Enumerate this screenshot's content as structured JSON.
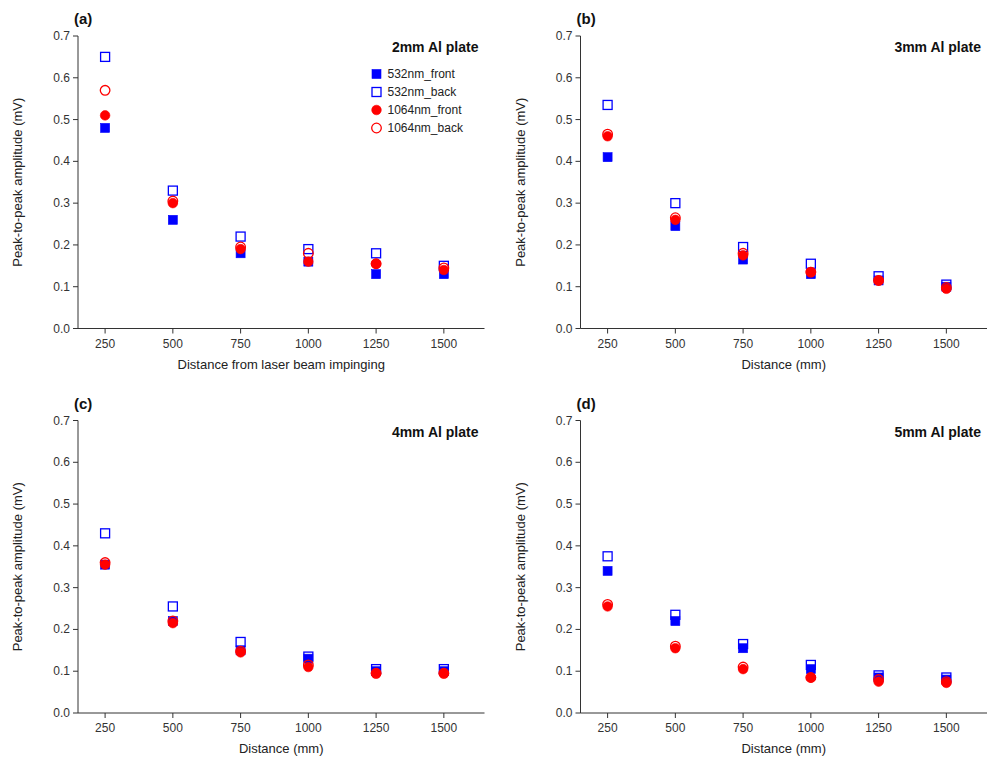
{
  "chart_data": [
    {
      "type": "scatter",
      "title": "2mm Al plate",
      "annotations": [
        "(a)"
      ],
      "x_label": "Distance from laser beam impinging",
      "y_label": "Peak-to-peak amplitude (mV)",
      "x": [
        250,
        500,
        750,
        1000,
        1250,
        1500
      ],
      "xlim": [
        150,
        1650
      ],
      "xticks": [
        250,
        500,
        750,
        1000,
        1250,
        1500
      ],
      "ylim": [
        0.0,
        0.7
      ],
      "yticks": [
        {
          "value": 0.0,
          "label": "0.0"
        },
        0.1,
        0.2,
        0.3,
        0.4,
        0.5,
        0.6,
        0.7
      ],
      "grid": false,
      "legend": "upper-right",
      "series": [
        {
          "name": "532nm_front",
          "color": "#0000FF",
          "marker": "square",
          "values": [
            0.48,
            0.26,
            0.18,
            0.16,
            0.13,
            0.13
          ]
        },
        {
          "name": "532nm_back",
          "color": "#0000FF",
          "marker": "open-square",
          "values": [
            0.65,
            0.33,
            0.22,
            0.19,
            0.18,
            0.15
          ]
        },
        {
          "name": "1064nm_front",
          "color": "#FF0000",
          "marker": "circle",
          "values": [
            0.51,
            0.3,
            0.19,
            0.16,
            0.155,
            0.14
          ]
        },
        {
          "name": "1064nm_back",
          "color": "#FF0000",
          "marker": "open-circle",
          "values": [
            0.57,
            0.305,
            0.195,
            0.18,
            0.155,
            0.145
          ]
        }
      ]
    },
    {
      "type": "scatter",
      "title": "3mm Al plate",
      "annotations": [
        "(b)"
      ],
      "x_label": "Distance (mm)",
      "y_label": "Peak-to-peak amplitude (mV)",
      "x": [
        250,
        500,
        750,
        1000,
        1250,
        1500
      ],
      "xlim": [
        150,
        1650
      ],
      "xticks": [
        250,
        500,
        750,
        1000,
        1250,
        1500
      ],
      "ylim": [
        0.0,
        0.7
      ],
      "yticks": [
        {
          "value": 0.0,
          "label": "0.0"
        },
        0.1,
        0.2,
        0.3,
        0.4,
        0.5,
        0.6,
        0.7
      ],
      "grid": false,
      "series": [
        {
          "name": "532nm_front",
          "color": "#0000FF",
          "marker": "square",
          "values": [
            0.41,
            0.245,
            0.165,
            0.13,
            0.115,
            0.1
          ]
        },
        {
          "name": "532nm_back",
          "color": "#0000FF",
          "marker": "open-square",
          "values": [
            0.535,
            0.3,
            0.195,
            0.155,
            0.125,
            0.105
          ]
        },
        {
          "name": "1064nm_front",
          "color": "#FF0000",
          "marker": "circle",
          "values": [
            0.46,
            0.26,
            0.175,
            0.135,
            0.115,
            0.095
          ]
        },
        {
          "name": "1064nm_back",
          "color": "#FF0000",
          "marker": "open-circle",
          "values": [
            0.465,
            0.265,
            0.18,
            0.135,
            0.115,
            0.098
          ]
        }
      ]
    },
    {
      "type": "scatter",
      "title": "4mm Al plate",
      "annotations": [
        "(c)"
      ],
      "x_label": "Distance (mm)",
      "y_label": "Peak-to-peak amplitude (mV)",
      "x": [
        250,
        500,
        750,
        1000,
        1250,
        1500
      ],
      "xlim": [
        150,
        1650
      ],
      "xticks": [
        250,
        500,
        750,
        1000,
        1250,
        1500
      ],
      "ylim": [
        0.0,
        0.7
      ],
      "yticks": [
        {
          "value": 0.0,
          "label": "0.0"
        },
        0.1,
        0.2,
        0.3,
        0.4,
        0.5,
        0.6,
        0.7
      ],
      "grid": false,
      "series": [
        {
          "name": "532nm_front",
          "color": "#0000FF",
          "marker": "square",
          "values": [
            0.355,
            0.22,
            0.15,
            0.13,
            0.1,
            0.1
          ]
        },
        {
          "name": "532nm_back",
          "color": "#0000FF",
          "marker": "open-square",
          "values": [
            0.43,
            0.255,
            0.17,
            0.135,
            0.105,
            0.105
          ]
        },
        {
          "name": "1064nm_front",
          "color": "#FF0000",
          "marker": "circle",
          "values": [
            0.355,
            0.215,
            0.145,
            0.11,
            0.095,
            0.095
          ]
        },
        {
          "name": "1064nm_back",
          "color": "#FF0000",
          "marker": "open-circle",
          "values": [
            0.36,
            0.22,
            0.148,
            0.115,
            0.095,
            0.095
          ]
        }
      ]
    },
    {
      "type": "scatter",
      "title": "5mm Al plate",
      "annotations": [
        "(d)"
      ],
      "x_label": "Distance (mm)",
      "y_label": "Peak-to-peak amplitude (mV)",
      "x": [
        250,
        500,
        750,
        1000,
        1250,
        1500
      ],
      "xlim": [
        150,
        1650
      ],
      "xticks": [
        250,
        500,
        750,
        1000,
        1250,
        1500
      ],
      "ylim": [
        0.0,
        0.7
      ],
      "yticks": [
        {
          "value": 0.0,
          "label": "0.0"
        },
        0.1,
        0.2,
        0.3,
        0.4,
        0.5,
        0.6,
        0.7
      ],
      "grid": false,
      "series": [
        {
          "name": "532nm_front",
          "color": "#0000FF",
          "marker": "square",
          "values": [
            0.34,
            0.22,
            0.155,
            0.105,
            0.085,
            0.08
          ]
        },
        {
          "name": "532nm_back",
          "color": "#0000FF",
          "marker": "open-square",
          "values": [
            0.375,
            0.235,
            0.165,
            0.115,
            0.09,
            0.085
          ]
        },
        {
          "name": "1064nm_front",
          "color": "#FF0000",
          "marker": "circle",
          "values": [
            0.255,
            0.155,
            0.105,
            0.085,
            0.075,
            0.072
          ]
        },
        {
          "name": "1064nm_back",
          "color": "#FF0000",
          "marker": "open-circle",
          "values": [
            0.26,
            0.16,
            0.11,
            0.085,
            0.08,
            0.075
          ]
        }
      ]
    }
  ]
}
